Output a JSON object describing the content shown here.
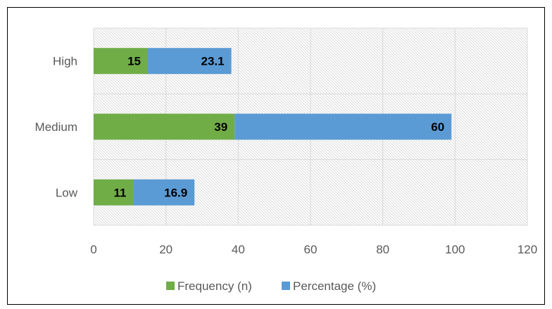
{
  "chart_data": {
    "type": "bar",
    "orientation": "horizontal",
    "stacked": true,
    "categories": [
      "High",
      "Medium",
      "Low"
    ],
    "series": [
      {
        "name": "Frequency (n)",
        "values": [
          15,
          39,
          11
        ],
        "color": "#70AD47"
      },
      {
        "name": "Percentage (%)",
        "values": [
          23.1,
          60,
          16.9
        ],
        "color": "#5B9BD5"
      }
    ],
    "xlim": [
      0,
      120
    ],
    "xticks": [
      "0",
      "20",
      "40",
      "60",
      "80",
      "100",
      "120"
    ],
    "grid": true,
    "legend_position": "bottom",
    "title": "",
    "xlabel": "",
    "ylabel": ""
  }
}
